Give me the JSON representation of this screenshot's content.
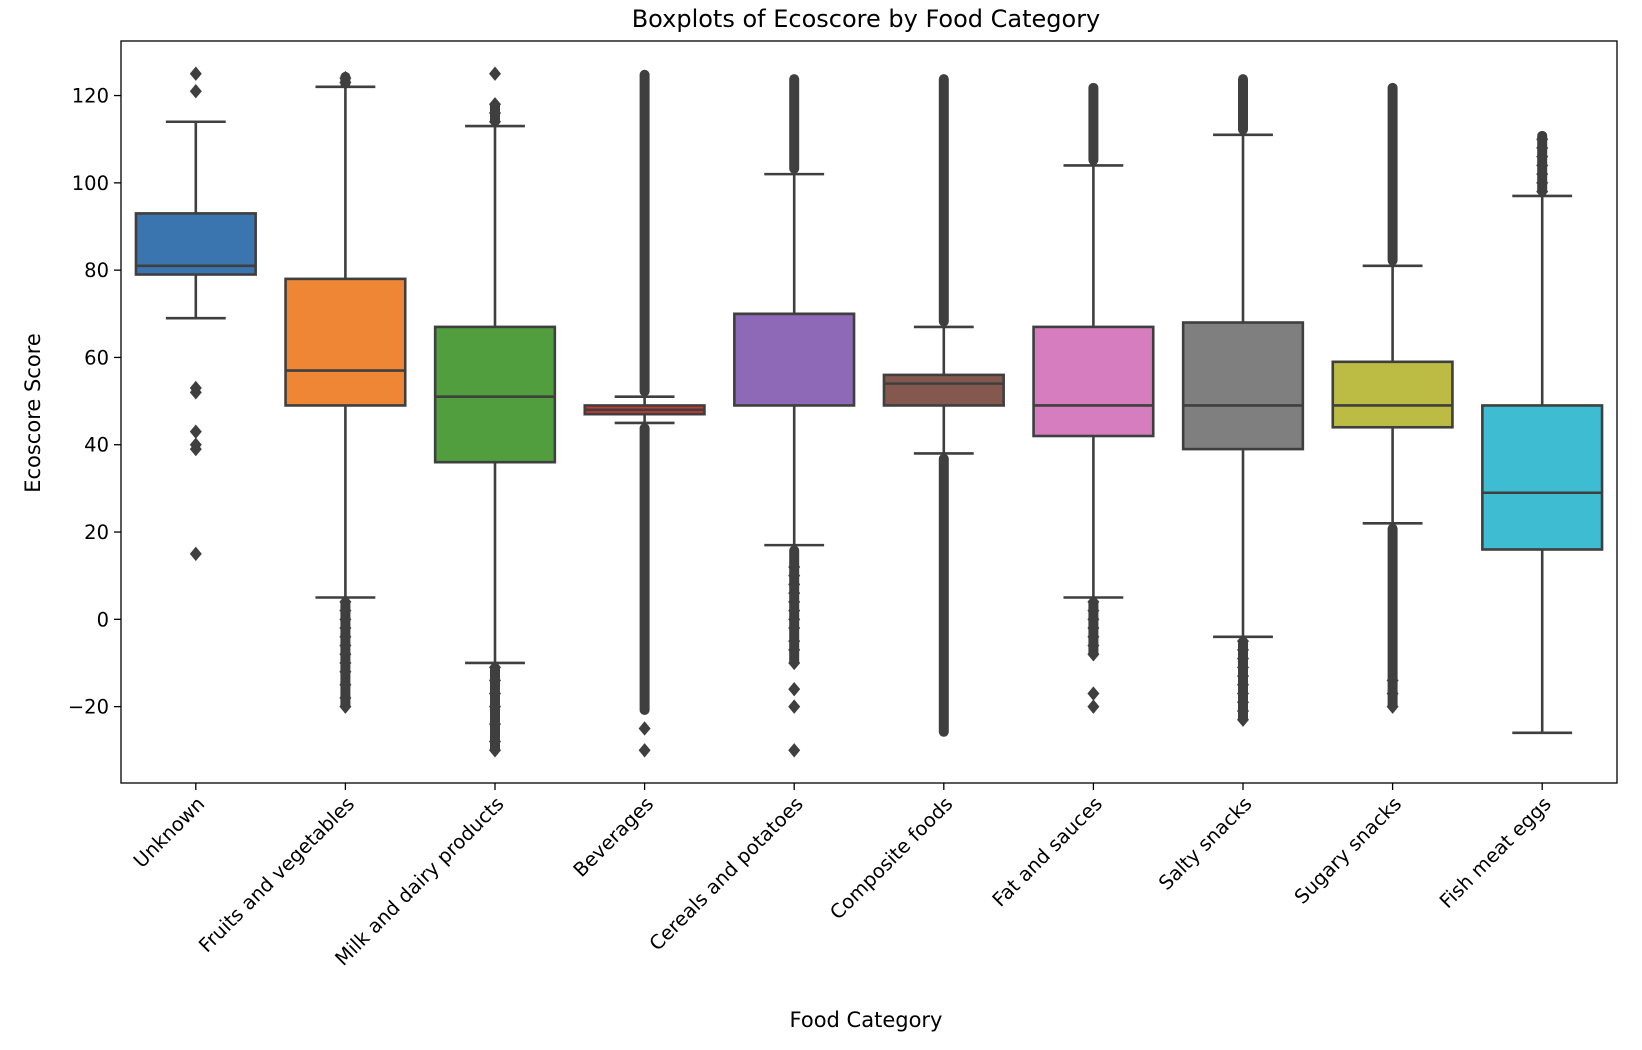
{
  "chart_data": {
    "type": "box",
    "title": "Boxplots of Ecoscore by Food Category",
    "xlabel": "Food Category",
    "ylabel": "Ecoscore Score",
    "ylim": [
      -37.5,
      132.5
    ],
    "yticks": [
      -20,
      0,
      20,
      40,
      60,
      80,
      100,
      120
    ],
    "ytick_labels": [
      "−20",
      "0",
      "20",
      "40",
      "60",
      "80",
      "100",
      "120"
    ],
    "grid": false,
    "edge_color": "#3f3f3f",
    "categories": [
      {
        "name": "Unknown",
        "color": "#3b75af",
        "q1": 79,
        "median": 81,
        "q3": 93,
        "whisker_low": 69,
        "whisker_high": 114,
        "outliers": [
          15,
          39,
          40,
          43,
          52,
          53,
          121,
          125
        ]
      },
      {
        "name": "Fruits and vegetables",
        "color": "#ef8636",
        "q1": 49,
        "median": 57,
        "q3": 78,
        "whisker_low": 5,
        "whisker_high": 122,
        "outliers": [
          -20,
          -18,
          -15,
          -12,
          -10,
          -8,
          -6,
          -4,
          -2,
          0,
          2,
          4,
          123,
          124
        ],
        "outlier_band": [
          [
            -20,
            4
          ],
          [
            122.5,
            124.5
          ]
        ]
      },
      {
        "name": "Milk and dairy products",
        "color": "#519e3e",
        "q1": 36,
        "median": 51,
        "q3": 67,
        "whisker_low": -10,
        "whisker_high": 113,
        "outliers": [
          -30,
          -28,
          -24,
          -20,
          -17,
          -14,
          -11,
          114,
          116,
          118,
          125
        ],
        "outlier_band": [
          [
            -30,
            -11
          ],
          [
            114,
            118
          ]
        ]
      },
      {
        "name": "Beverages",
        "color": "#c53a32",
        "q1": 47,
        "median": 48,
        "q3": 49,
        "whisker_low": 45,
        "whisker_high": 51,
        "outliers": [
          -30,
          -25
        ],
        "outlier_band": [
          [
            -21,
            44
          ],
          [
            52,
            125
          ]
        ]
      },
      {
        "name": "Cereals and potatoes",
        "color": "#8d69b8",
        "q1": 49,
        "median": 70,
        "q3": 70,
        "whisker_low": 17,
        "whisker_high": 102,
        "outliers": [
          -30,
          -20,
          -16,
          -10,
          -7,
          -5,
          -2,
          0,
          2,
          4,
          6,
          8,
          10,
          12
        ],
        "outlier_band": [
          [
            -10,
            16
          ],
          [
            103,
            124
          ]
        ]
      },
      {
        "name": "Composite foods",
        "color": "#84584e",
        "q1": 49,
        "median": 54,
        "q3": 56,
        "whisker_low": 38,
        "whisker_high": 67,
        "outliers": [],
        "outlier_band": [
          [
            -26,
            37
          ],
          [
            68,
            124
          ]
        ]
      },
      {
        "name": "Fat and sauces",
        "color": "#d57dbe",
        "q1": 42,
        "median": 49,
        "q3": 67,
        "whisker_low": 5,
        "whisker_high": 104,
        "outliers": [
          -20,
          -17,
          -8,
          -6,
          -4,
          -2,
          0,
          2,
          4
        ],
        "outlier_band": [
          [
            -8,
            4
          ],
          [
            105,
            122
          ]
        ]
      },
      {
        "name": "Salty snacks",
        "color": "#7f7f7f",
        "q1": 39,
        "median": 49,
        "q3": 68,
        "whisker_low": -4,
        "whisker_high": 111,
        "outliers": [
          -23,
          -21,
          -19,
          -17,
          -15,
          -13,
          -11,
          -9,
          -7,
          -5
        ],
        "outlier_band": [
          [
            -23,
            -5
          ],
          [
            112,
            124
          ]
        ]
      },
      {
        "name": "Sugary snacks",
        "color": "#bcbc45",
        "q1": 44,
        "median": 49,
        "q3": 59,
        "whisker_low": 22,
        "whisker_high": 81,
        "outliers": [
          -20,
          -17,
          -14
        ],
        "outlier_band": [
          [
            -20,
            21
          ],
          [
            82,
            122
          ]
        ]
      },
      {
        "name": "Fish meat eggs",
        "color": "#3ebcd2",
        "q1": 16,
        "median": 29,
        "q3": 49,
        "whisker_low": -26,
        "whisker_high": 97,
        "outliers": [
          98,
          100,
          102,
          104,
          106,
          108,
          110
        ],
        "outlier_band": [
          [
            98,
            111
          ]
        ]
      }
    ]
  }
}
